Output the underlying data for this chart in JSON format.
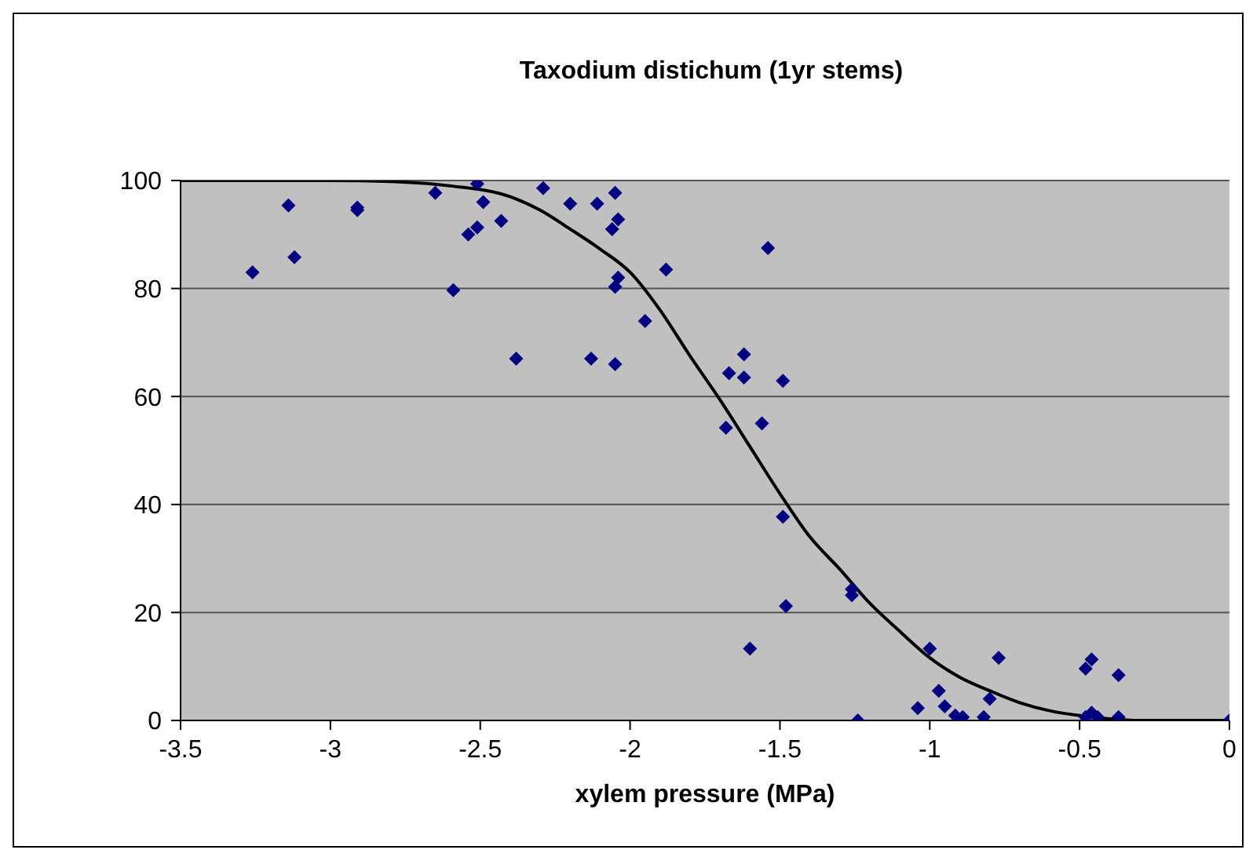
{
  "chart_data": {
    "type": "scatter",
    "title": "Taxodium distichum (1yr stems)",
    "xlabel": "xylem pressure (MPa)",
    "xlim": [
      -3.5,
      0
    ],
    "xticks": [
      -3.5,
      -3,
      -2.5,
      -2,
      -1.5,
      -1,
      -0.5,
      0
    ],
    "ylim": [
      0,
      100
    ],
    "yticks": [
      0,
      20,
      40,
      60,
      80,
      100
    ],
    "grid": "y",
    "legend": false,
    "marker": "diamond",
    "series": [
      {
        "color": "#000080",
        "x": [
          -3.26,
          -3.14,
          -3.12,
          -2.91,
          -2.91,
          -2.65,
          -2.59,
          -2.54,
          -2.51,
          -2.51,
          -2.49,
          -2.43,
          -2.38,
          -2.29,
          -2.2,
          -2.11,
          -2.13,
          -2.05,
          -2.04,
          -2.06,
          -2.04,
          -2.05,
          -2.05,
          -1.88,
          -1.95,
          -1.54,
          -1.62,
          -1.67,
          -1.62,
          -1.49,
          -1.68,
          -1.56,
          -1.49,
          -1.48,
          -1.6,
          -1.26,
          -1.26,
          -1.24,
          -1.0,
          -0.97,
          -1.04,
          -0.95,
          -0.915,
          -0.89,
          -0.82,
          -0.8,
          -0.77,
          -0.48,
          -0.46,
          -0.37,
          -0.48,
          -0.46,
          -0.44,
          -0.37,
          0
        ],
        "values": [
          83,
          95.4,
          85.8,
          95,
          94.5,
          97.7,
          79.7,
          90,
          91.3,
          99.4,
          96,
          92.5,
          67,
          98.6,
          95.7,
          95.7,
          67,
          97.7,
          92.8,
          91,
          82,
          80.3,
          66,
          83.5,
          74,
          87.5,
          67.8,
          64.3,
          63.5,
          62.9,
          54.2,
          55,
          37.7,
          21.2,
          13.3,
          24.3,
          23.2,
          0,
          13.3,
          5.5,
          2.3,
          2.6,
          0.9,
          0.6,
          0.6,
          4,
          11.6,
          9.6,
          11.3,
          8.4,
          0.6,
          1.4,
          0.6,
          0.6,
          0
        ]
      },
      {
        "type": "line",
        "color": "#000000",
        "marker": "none",
        "x": [
          -3.5,
          -3,
          -2.8,
          -2.6,
          -2.4,
          -2.3,
          -2.2,
          -2.1,
          -2,
          -1.9,
          -1.8,
          -1.7,
          -1.6,
          -1.5,
          -1.4,
          -1.3,
          -1.2,
          -1.1,
          -1,
          -0.9,
          -0.8,
          -0.7,
          -0.6,
          -0.5,
          -0.4,
          -0.3,
          0
        ],
        "values": [
          100,
          100,
          99.8,
          99,
          97,
          94.5,
          91,
          87.3,
          83,
          76,
          67.5,
          59.4,
          50.7,
          42,
          34,
          28,
          21.7,
          16.5,
          11.6,
          8,
          5.5,
          3.3,
          1.8,
          0.9,
          0.3,
          0,
          0
        ]
      }
    ]
  }
}
